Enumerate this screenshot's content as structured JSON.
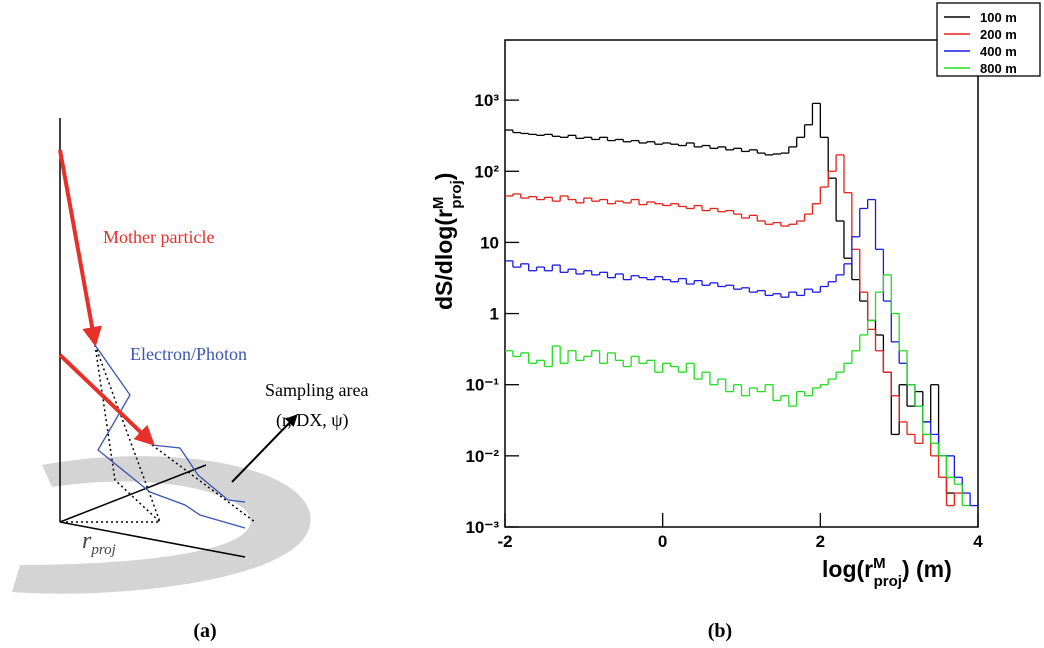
{
  "diagram": {
    "mother": "Mother particle",
    "electron": "Electron/Photon",
    "sampling": "Sampling area",
    "params": "(r, DX, ψ)",
    "rproj": [
      "r",
      "proj"
    ]
  },
  "captions": [
    "(a)",
    "(b)"
  ],
  "chart_data": {
    "type": "histogram",
    "xlabel": [
      "log(r",
      "M",
      "proj",
      ") (m)"
    ],
    "ylabel": [
      "dS/dlog(r",
      "M",
      "proj",
      ")"
    ],
    "log_y": true,
    "legend": "top-right",
    "xlim": [
      -2,
      4
    ],
    "xticks": [
      -2,
      0,
      2,
      4
    ],
    "ylim": [
      0.001,
      7000
    ],
    "yticks": [
      {
        "value": 0.001,
        "label": "10⁻³"
      },
      {
        "value": 0.01,
        "label": "10⁻²"
      },
      {
        "value": 0.1,
        "label": "10⁻¹"
      },
      1,
      10,
      {
        "value": 100,
        "label": "10²"
      },
      {
        "value": 1000,
        "label": "10³"
      }
    ],
    "bins": [
      -2,
      -1.9,
      -1.8,
      -1.7,
      -1.6,
      -1.5,
      -1.4,
      -1.3,
      -1.2,
      -1.1,
      -1,
      -0.9,
      -0.8,
      -0.7,
      -0.6,
      -0.5,
      -0.4,
      -0.3,
      -0.2,
      -0.1,
      0,
      0.1,
      0.2,
      0.3,
      0.4,
      0.5,
      0.6,
      0.7,
      0.8,
      0.9,
      1,
      1.1,
      1.2,
      1.3,
      1.4,
      1.5,
      1.6,
      1.7,
      1.8,
      1.9,
      2,
      2.1,
      2.2,
      2.3,
      2.4,
      2.5,
      2.6,
      2.7,
      2.8,
      2.9,
      3,
      3.1,
      3.2,
      3.3,
      3.4,
      3.5,
      3.6,
      3.7,
      3.8,
      3.9,
      4
    ],
    "series": [
      {
        "name": "100 m",
        "color": "#000000",
        "values": [
          380,
          350,
          340,
          330,
          320,
          330,
          310,
          300,
          320,
          290,
          300,
          280,
          300,
          270,
          280,
          260,
          270,
          250,
          260,
          240,
          250,
          240,
          230,
          250,
          220,
          230,
          210,
          220,
          200,
          210,
          190,
          200,
          180,
          170,
          175,
          180,
          220,
          300,
          450,
          900,
          300,
          80,
          20,
          6,
          3,
          1.5,
          0.8,
          0.5,
          0.15,
          0.02,
          0.1,
          0.05,
          0.08,
          0.03,
          0.1,
          0.01,
          0.003,
          null,
          null,
          null
        ]
      },
      {
        "name": "200 m",
        "color": "#e8201a",
        "values": [
          45,
          48,
          42,
          44,
          40,
          43,
          38,
          45,
          40,
          36,
          42,
          38,
          40,
          35,
          38,
          36,
          40,
          34,
          37,
          35,
          33,
          35,
          32,
          30,
          33,
          28,
          30,
          27,
          28,
          25,
          22,
          24,
          20,
          18,
          19,
          17,
          18,
          20,
          25,
          35,
          60,
          100,
          170,
          50,
          8,
          2,
          0.6,
          0.3,
          0.15,
          0.07,
          0.03,
          0.02,
          0.015,
          0.02,
          0.01,
          0.005,
          0.002,
          0.003,
          null,
          null
        ]
      },
      {
        "name": "400 m",
        "color": "#1a1ae0",
        "values": [
          5.5,
          4.5,
          5,
          4,
          4.5,
          4,
          4.8,
          3.8,
          4.2,
          3.6,
          4,
          3.5,
          3.8,
          3.2,
          3.6,
          3,
          3.4,
          3.2,
          3,
          3.3,
          3,
          2.8,
          3.1,
          2.6,
          2.9,
          2.5,
          2.7,
          2.4,
          2.5,
          2.2,
          2.3,
          2,
          2.1,
          1.8,
          1.9,
          1.7,
          2,
          1.8,
          2.2,
          2,
          2.4,
          2.8,
          3.5,
          5,
          12,
          30,
          40,
          8,
          1.5,
          0.4,
          0.2,
          0.1,
          0.05,
          0.03,
          0.02,
          0.01,
          0.01,
          0.005,
          0.003,
          0.002
        ]
      },
      {
        "name": "800 m",
        "color": "#22dd22",
        "values": [
          0.3,
          0.25,
          0.28,
          0.2,
          0.22,
          0.18,
          0.35,
          0.2,
          0.3,
          0.22,
          0.25,
          0.3,
          0.2,
          0.28,
          0.22,
          0.18,
          0.25,
          0.2,
          0.22,
          0.15,
          0.2,
          0.18,
          0.15,
          0.2,
          0.12,
          0.15,
          0.1,
          0.12,
          0.08,
          0.1,
          0.07,
          0.09,
          0.08,
          0.1,
          0.06,
          0.07,
          0.05,
          0.08,
          0.07,
          0.09,
          0.1,
          0.12,
          0.15,
          0.2,
          0.3,
          0.5,
          0.8,
          2,
          3.5,
          1,
          0.3,
          0.1,
          0.05,
          0.02,
          0.015,
          0.01,
          0.005,
          0.004,
          0.002,
          null
        ]
      }
    ]
  }
}
